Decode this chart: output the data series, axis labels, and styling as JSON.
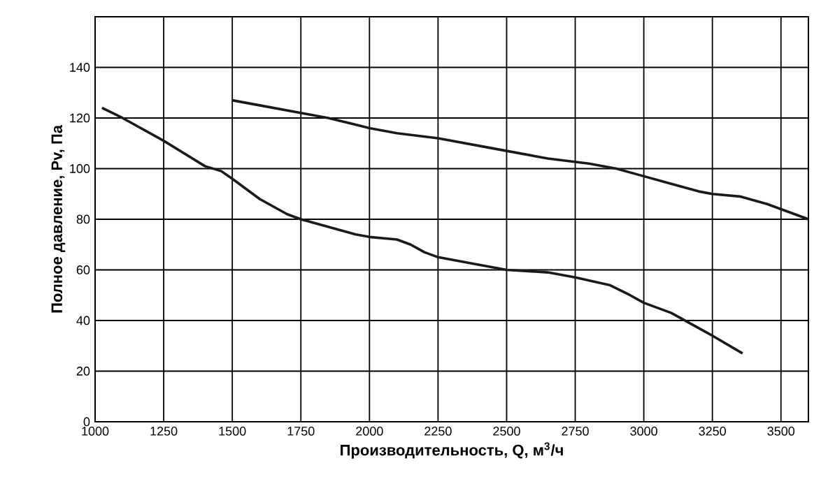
{
  "chart_data": {
    "type": "line",
    "xlabel": "Производительность, Q, м$^{3}$/ч",
    "ylabel": "Полное давление, Pv, Па",
    "xlim": [
      1000,
      3600
    ],
    "ylim": [
      0,
      160
    ],
    "xticks": [
      1000,
      1250,
      1500,
      1750,
      2000,
      2250,
      2500,
      2750,
      3000,
      3250,
      3500
    ],
    "yticks": [
      0,
      20,
      40,
      60,
      80,
      100,
      120,
      140
    ],
    "grid": true,
    "marker": "none",
    "line_style": "solid",
    "series": [
      {
        "color": "#1a1a1a",
        "x": [
          1500,
          1600,
          1750,
          1850,
          2000,
          2100,
          2250,
          2400,
          2500,
          2650,
          2800,
          2900,
          3000,
          3100,
          3200,
          3250,
          3350,
          3450,
          3600
        ],
        "values": [
          127,
          125,
          122,
          120,
          116,
          114,
          112,
          109,
          107,
          104,
          102,
          100,
          97,
          94,
          91,
          90,
          89,
          86,
          80
        ]
      },
      {
        "color": "#1a1a1a",
        "x": [
          1025,
          1100,
          1250,
          1400,
          1460,
          1500,
          1600,
          1700,
          1750,
          1850,
          1950,
          2000,
          2100,
          2150,
          2200,
          2250,
          2400,
          2500,
          2650,
          2750,
          2875,
          2950,
          3000,
          3100,
          3200,
          3250,
          3360
        ],
        "values": [
          124,
          120,
          111,
          101,
          99,
          96,
          88,
          82,
          80,
          77,
          74,
          73,
          72,
          70,
          67,
          65,
          62,
          60,
          59,
          57,
          54,
          50,
          47,
          43,
          37,
          34,
          27
        ]
      }
    ]
  }
}
